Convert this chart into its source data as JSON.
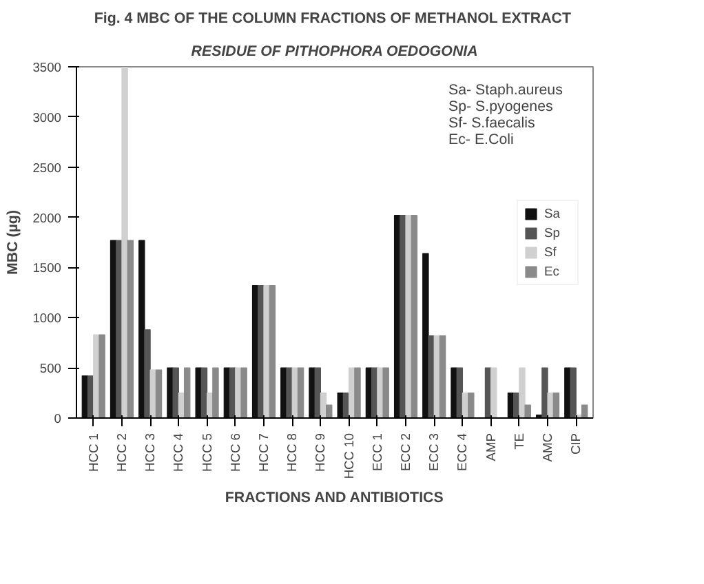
{
  "chart_data": {
    "type": "bar",
    "title": "Fig. 4  MBC OF THE COLUMN FRACTIONS OF METHANOL EXTRACT",
    "subtitle": "RESIDUE OF PITHOPHORA OEDOGONIA",
    "xlabel": "FRACTIONS AND ANTIBIOTICS",
    "ylabel": "MBC (µg)",
    "categories": [
      "HCC 1",
      "HCC 2",
      "HCC 3",
      "HCC 4",
      "HCC 5",
      "HCC 6",
      "HCC 7",
      "HCC 8",
      "HCC 9",
      "HCC 10",
      "ECC 1",
      "ECC 2",
      "ECC 3",
      "ECC 4",
      "AMP",
      "TE",
      "AMC",
      "CIP"
    ],
    "series": [
      {
        "name": "Sa",
        "color": "#111111",
        "values": [
          420,
          1770,
          1770,
          500,
          500,
          500,
          1320,
          500,
          500,
          250,
          500,
          2020,
          1640,
          500,
          0,
          250,
          30,
          500
        ]
      },
      {
        "name": "Sp",
        "color": "#555555",
        "values": [
          420,
          1770,
          880,
          500,
          500,
          500,
          1320,
          500,
          500,
          250,
          500,
          2020,
          820,
          500,
          500,
          250,
          500,
          500
        ]
      },
      {
        "name": "Sf",
        "color": "#d0d0d0",
        "values": [
          830,
          3500,
          480,
          250,
          250,
          500,
          1320,
          500,
          250,
          500,
          500,
          2020,
          820,
          250,
          500,
          500,
          250,
          30
        ]
      },
      {
        "name": "Ec",
        "color": "#8a8a8a",
        "values": [
          830,
          1770,
          480,
          500,
          500,
          500,
          1320,
          500,
          130,
          500,
          500,
          2020,
          820,
          250,
          0,
          130,
          250,
          130
        ]
      }
    ],
    "ylim": [
      0,
      3500
    ],
    "yticks": [
      0,
      500,
      1000,
      1500,
      2000,
      2500,
      3000,
      3500
    ],
    "grid": false,
    "legend": "right",
    "annotations": [
      "Sa- Staph.aureus",
      "Sp- S.pyogenes",
      "Sf- S.faecalis",
      "Ec- E.Coli"
    ]
  }
}
